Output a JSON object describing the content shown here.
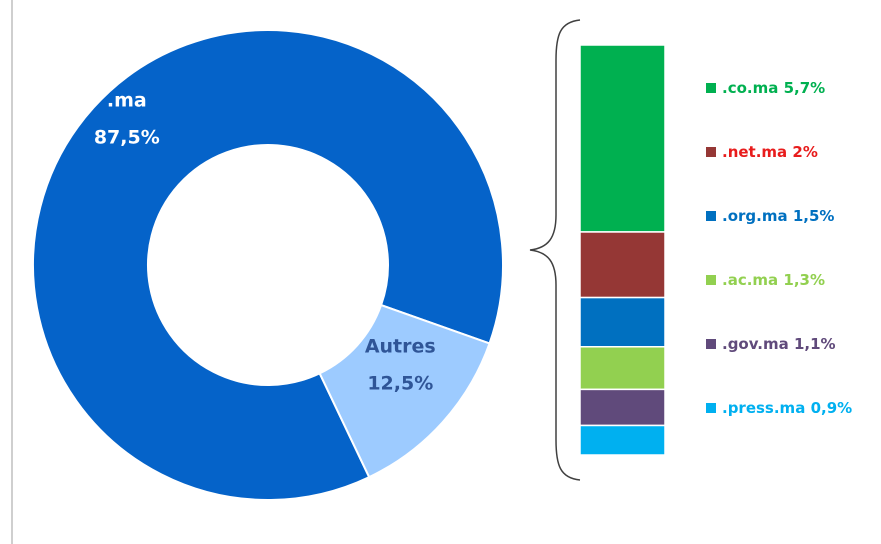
{
  "chart_data": [
    {
      "type": "donut",
      "categories": [
        ".ma",
        "Autres"
      ],
      "values": [
        87.5,
        12.5
      ],
      "value_labels": [
        "87,5%",
        "12,5%"
      ],
      "colors": [
        "#0563c9",
        "#9dcbff"
      ],
      "label_colors": [
        "#ffffff",
        "#2f5597"
      ]
    },
    {
      "type": "stacked_bar",
      "series": [
        {
          "name": ".co.ma",
          "values": [
            5.7
          ],
          "value_labels": [
            "5,7%"
          ],
          "color": "#00b050",
          "label_color": "#00b050"
        },
        {
          "name": ".net.ma",
          "values": [
            2
          ],
          "value_labels": [
            "2%"
          ],
          "color": "#953735",
          "label_color": "#e81c1c"
        },
        {
          "name": ".org.ma",
          "values": [
            1.5
          ],
          "value_labels": [
            "1,5%"
          ],
          "color": "#0070c0",
          "label_color": "#0070c0"
        },
        {
          "name": ".ac.ma",
          "values": [
            1.3
          ],
          "value_labels": [
            "1,3%"
          ],
          "color": "#92d050",
          "label_color": "#92d050"
        },
        {
          "name": ".gov.ma",
          "values": [
            1.1
          ],
          "value_labels": [
            "1,1%"
          ],
          "color": "#604a7b",
          "label_color": "#604a7b"
        },
        {
          "name": ".press.ma",
          "values": [
            0.9
          ],
          "value_labels": [
            "0,9%"
          ],
          "color": "#00b0f0",
          "label_color": "#00b0f0"
        }
      ]
    }
  ]
}
